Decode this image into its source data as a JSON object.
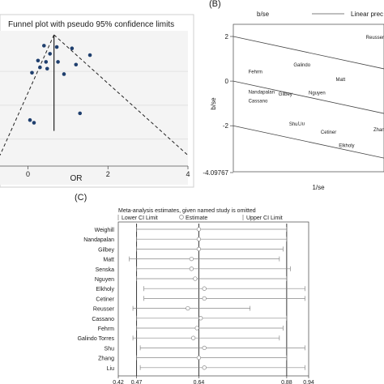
{
  "panel_a": {
    "title": "Funnel plot with pseudo 95% confidence limits",
    "x_ticks": [
      "0",
      "2",
      "4"
    ],
    "x_label": "OR"
  },
  "panel_b": {
    "tag": "(B)",
    "y_header": "b/se",
    "legend_label": "Linear prec",
    "y_axis_label": "b/se",
    "x_label": "1/se",
    "y_ticks": [
      "2",
      "0",
      "-2",
      "-4.09767"
    ],
    "points": [
      {
        "label": "Reusser"
      },
      {
        "label": "Galindo"
      },
      {
        "label": "Fehrm"
      },
      {
        "label": "Matt"
      },
      {
        "label": "Nandapalan"
      },
      {
        "label": "Gilbey"
      },
      {
        "label": "Nguyen"
      },
      {
        "label": "Cassano"
      },
      {
        "label": "Shu"
      },
      {
        "label": "Liu"
      },
      {
        "label": "Cetiner"
      },
      {
        "label": "Elkholy"
      },
      {
        "label": "Zhang"
      }
    ]
  },
  "panel_c": {
    "tag": "(C)",
    "title": "Meta-analysis estimates, given named study is omitted",
    "legend": {
      "lower": "Lower CI Limit",
      "estimate": "Estimate",
      "upper": "Upper CI Limit"
    },
    "x_ticks": [
      "0.42",
      "0.47",
      "0.64",
      "0.88",
      "0.94"
    ]
  },
  "chart_data": [
    {
      "type": "scatter",
      "title": "Funnel plot with pseudo 95% confidence limits",
      "xlabel": "OR",
      "ylabel": "",
      "xlim": [
        -0.7,
        4
      ],
      "ylim": [
        0,
        1
      ],
      "funnel_apex_x": 0.65,
      "reference_line_x": 0.65,
      "points": [
        {
          "x": 0.4,
          "y": 0.89
        },
        {
          "x": 0.72,
          "y": 0.88
        },
        {
          "x": 1.1,
          "y": 0.87
        },
        {
          "x": 0.55,
          "y": 0.83
        },
        {
          "x": 1.55,
          "y": 0.82
        },
        {
          "x": 0.25,
          "y": 0.78
        },
        {
          "x": 0.45,
          "y": 0.77
        },
        {
          "x": 0.75,
          "y": 0.77
        },
        {
          "x": 1.2,
          "y": 0.75
        },
        {
          "x": 0.3,
          "y": 0.73
        },
        {
          "x": 0.48,
          "y": 0.72
        },
        {
          "x": 0.1,
          "y": 0.69
        },
        {
          "x": 0.9,
          "y": 0.68
        },
        {
          "x": 1.3,
          "y": 0.39
        },
        {
          "x": 0.05,
          "y": 0.34
        },
        {
          "x": 0.15,
          "y": 0.32
        }
      ]
    },
    {
      "type": "scatter",
      "title": "",
      "xlabel": "1/se",
      "ylabel": "b/se",
      "ylim": [
        -4.09767,
        2.8
      ],
      "series": [
        {
          "values": [
            {
              "label": "Reusser",
              "x": 0.88,
              "y": 1.9
            },
            {
              "label": "Galindo",
              "x": 0.4,
              "y": 0.65
            },
            {
              "label": "Fehrm",
              "x": 0.1,
              "y": 0.35
            },
            {
              "label": "Matt",
              "x": 0.68,
              "y": 0.0
            },
            {
              "label": "Nandapalan",
              "x": 0.1,
              "y": -0.55
            },
            {
              "label": "Gilbey",
              "x": 0.3,
              "y": -0.65
            },
            {
              "label": "Nguyen",
              "x": 0.5,
              "y": -0.6
            },
            {
              "label": "Cassano",
              "x": 0.1,
              "y": -0.95
            },
            {
              "label": "Shu",
              "x": 0.37,
              "y": -2.0
            },
            {
              "label": "Liu",
              "x": 0.43,
              "y": -1.98
            },
            {
              "label": "Cetiner",
              "x": 0.58,
              "y": -2.35
            },
            {
              "label": "Elkholy",
              "x": 0.7,
              "y": -2.95
            },
            {
              "label": "Zhang",
              "x": 0.93,
              "y": -2.25
            }
          ]
        }
      ],
      "lines": [
        {
          "name": "Linear prec",
          "y_at_0": 2.0,
          "y_at_1": 0.55
        },
        {
          "y_at_0": 0.0,
          "y_at_1": -1.45
        },
        {
          "y_at_0": -2.0,
          "y_at_1": -3.45
        }
      ]
    },
    {
      "type": "forest",
      "title": "Meta-analysis estimates, given named study is omitted",
      "xlim": [
        0.42,
        0.94
      ],
      "x_ticks": [
        0.42,
        0.47,
        0.64,
        0.88,
        0.94
      ],
      "series": [
        {
          "name": "Lower CI Limit"
        },
        {
          "name": "Estimate"
        },
        {
          "name": "Upper CI Limit"
        }
      ],
      "categories": [
        "Weighill",
        "Nandapalan",
        "Gilbey",
        "Matt",
        "Senska",
        "Nguyen",
        "Elkholy",
        "Cetiner",
        "Reusser",
        "Cassano",
        "Fehrm",
        "Galindo Torres",
        "Shu",
        "Zhang",
        "Liu"
      ],
      "estimate": [
        0.64,
        0.64,
        0.64,
        0.62,
        0.62,
        0.63,
        0.655,
        0.655,
        0.61,
        0.645,
        0.635,
        0.625,
        0.655,
        0.64,
        0.655
      ],
      "lower": [
        0.47,
        0.47,
        0.47,
        0.45,
        0.47,
        0.47,
        0.49,
        0.49,
        0.46,
        0.47,
        0.47,
        0.46,
        0.48,
        0.47,
        0.48
      ],
      "upper": [
        0.88,
        0.88,
        0.87,
        0.86,
        0.89,
        0.88,
        0.93,
        0.93,
        0.78,
        0.88,
        0.87,
        0.86,
        0.93,
        0.88,
        0.93
      ]
    }
  ]
}
